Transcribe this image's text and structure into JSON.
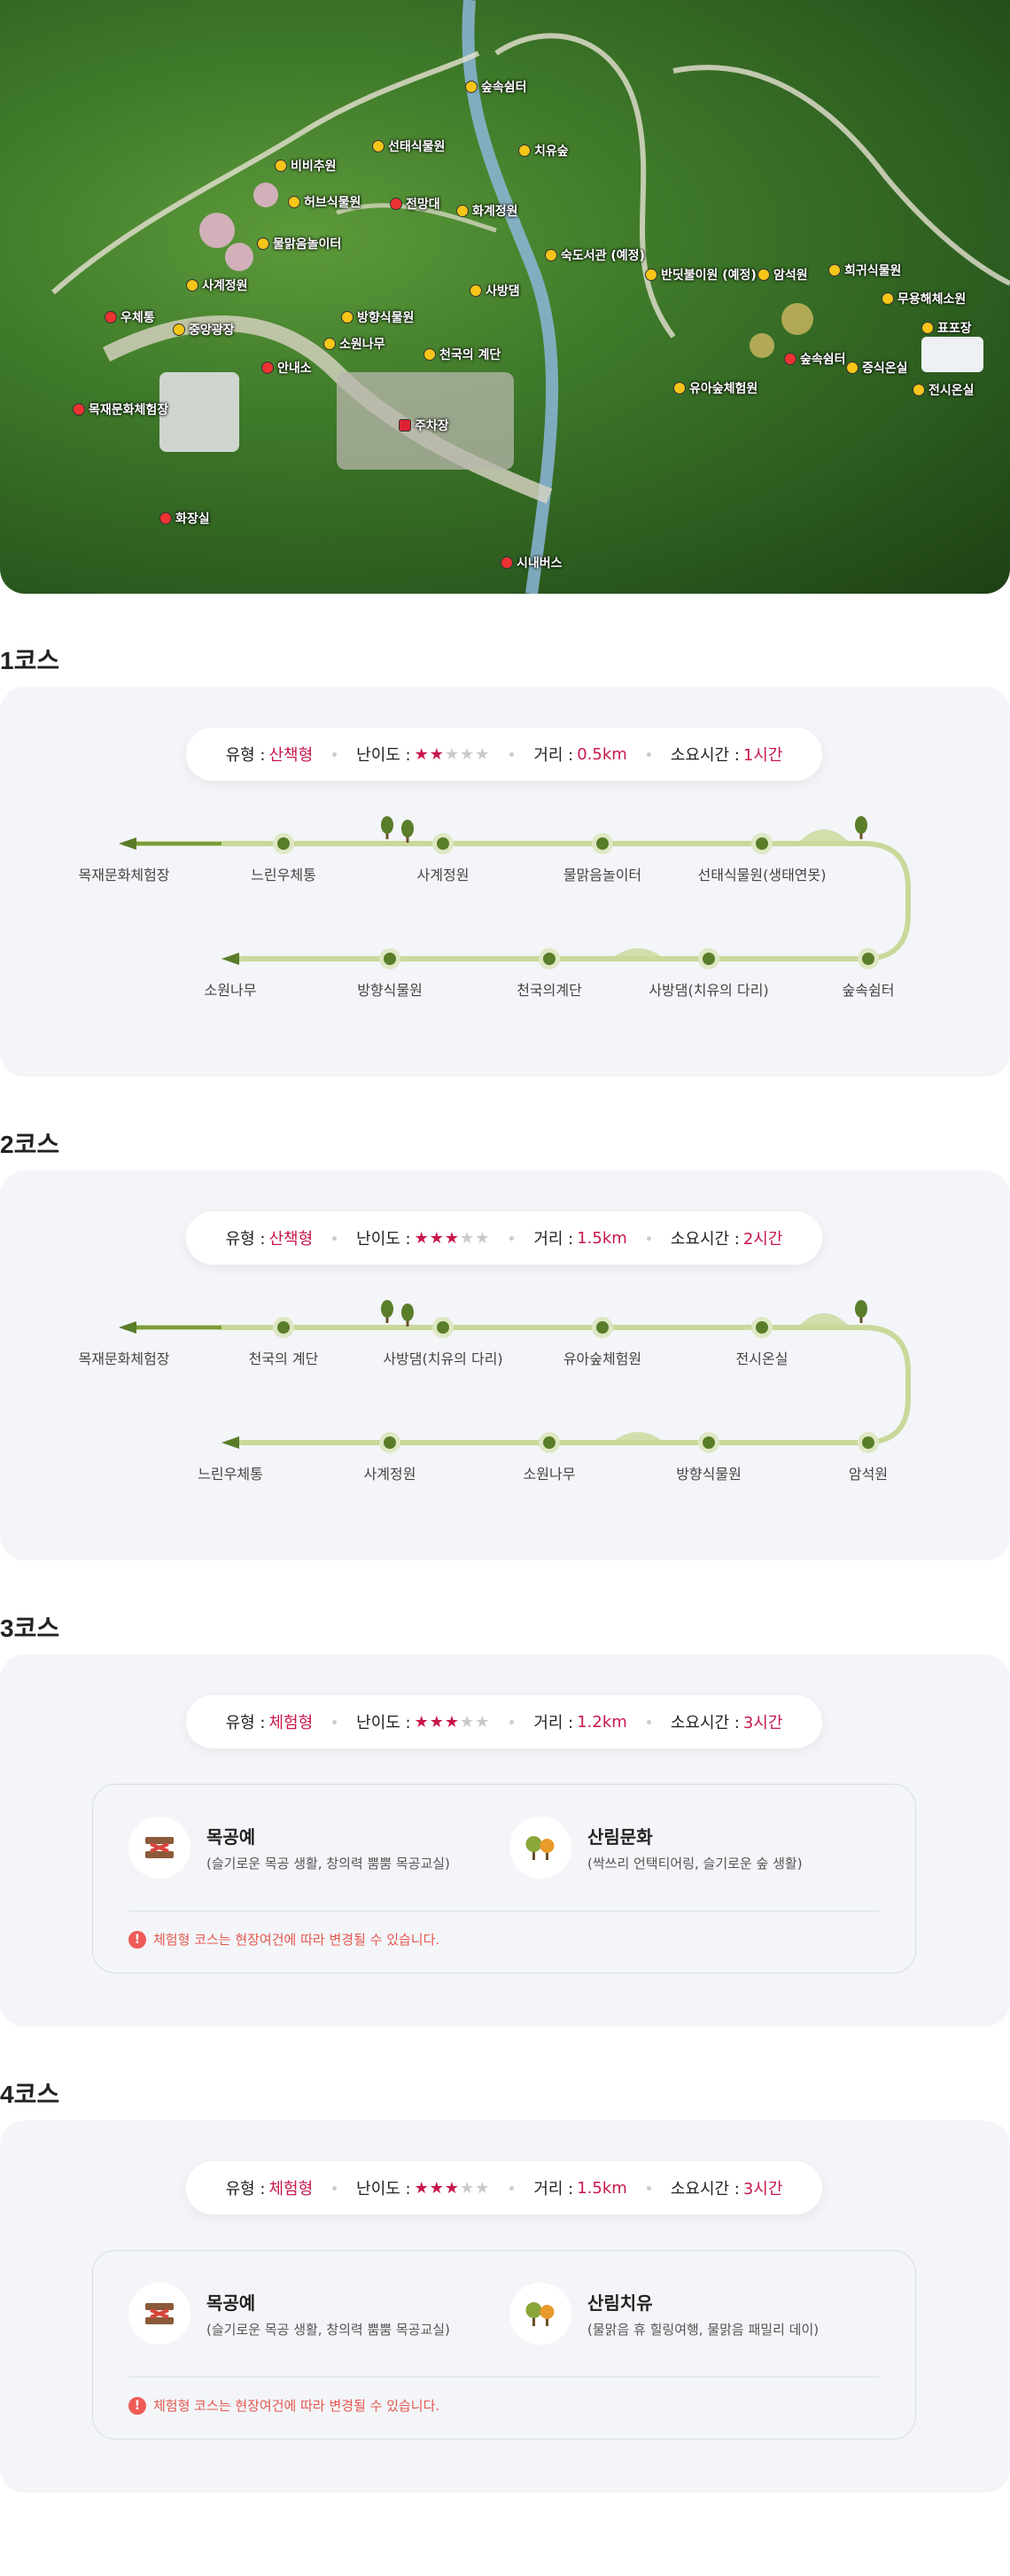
{
  "map": {
    "labels": {
      "rest_area_top": "숲속쉼터",
      "seontae": "선태식물원",
      "chiyu": "치유숲",
      "bibi": "비비추원",
      "herb": "허브식물원",
      "jeonmang": "전망대",
      "hwagye": "화계정원",
      "mulmalgeum": "물맑음놀이터",
      "sukdo": "숙도서관 (예정)",
      "bandi": "반딧불이원 (예정)",
      "amseok": "암석원",
      "huigwi": "희귀식물원",
      "muyonghae": "무용해체소원",
      "pyopo": "표포장",
      "sagye": "사계정원",
      "banghyang": "방향식물원",
      "sabang": "사방댐",
      "ujeche": "우체통",
      "jungang": "중앙광장",
      "sowon": "소원나무",
      "cheonguk": "천국의 계단",
      "info": "안내소",
      "mokjae": "목재문화체험장",
      "rest_area_right": "숲속쉼터",
      "jeungsik": "증식온실",
      "jeonsi": "전시온실",
      "yua": "유아숲체험원",
      "parking": "주차장",
      "toilet": "화장실",
      "bus": "시내버스"
    }
  },
  "courses": [
    {
      "title": "1코스",
      "info": {
        "type_label": "유형 :",
        "type": "산책형",
        "difficulty_label": "난이도 :",
        "difficulty": 2,
        "distance_label": "거리 :",
        "distance": "0.5km",
        "time_label": "소요시간 :",
        "time": "1시간"
      },
      "top_stops": [
        "목재문화체험장",
        "느린우체통",
        "사계정원",
        "물맑음놀이터",
        "선태식물원(생태연못)"
      ],
      "bottom_stops": [
        "소원나무",
        "방향식물원",
        "천국의계단",
        "사방댐(치유의 다리)",
        "숲속쉼터"
      ]
    },
    {
      "title": "2코스",
      "info": {
        "type_label": "유형 :",
        "type": "산책형",
        "difficulty_label": "난이도 :",
        "difficulty": 3,
        "distance_label": "거리 :",
        "distance": "1.5km",
        "time_label": "소요시간 :",
        "time": "2시간"
      },
      "top_stops": [
        "목재문화체험장",
        "천국의 계단",
        "사방댐(치유의 다리)",
        "유아숲체험원",
        "전시온실"
      ],
      "bottom_stops": [
        "느린우체통",
        "사계정원",
        "소원나무",
        "방향식물원",
        "암석원"
      ]
    },
    {
      "title": "3코스",
      "info": {
        "type_label": "유형 :",
        "type": "체험형",
        "difficulty_label": "난이도 :",
        "difficulty": 3,
        "distance_label": "거리 :",
        "distance": "1.2km",
        "time_label": "소요시간 :",
        "time": "3시간"
      },
      "exp": [
        {
          "title": "목공예",
          "desc": "(슬기로운 목공 생활, 창의력 뿜뿜 목공교실)",
          "icon": "woodcraft-icon"
        },
        {
          "title": "산림문화",
          "desc": "(싹쓰리 언택티어링, 슬기로운 숲 생활)",
          "icon": "forest-icon"
        }
      ],
      "note": "체험형 코스는 현장여건에 따라 변경될 수 있습니다."
    },
    {
      "title": "4코스",
      "info": {
        "type_label": "유형 :",
        "type": "체험형",
        "difficulty_label": "난이도 :",
        "difficulty": 3,
        "distance_label": "거리 :",
        "distance": "1.5km",
        "time_label": "소요시간 :",
        "time": "3시간"
      },
      "exp": [
        {
          "title": "목공예",
          "desc": "(슬기로운 목공 생활, 창의력 뿜뿜 목공교실)",
          "icon": "woodcraft-icon"
        },
        {
          "title": "산림치유",
          "desc": "(물맑음 휴 힐링여행, 물맑음 패밀리 데이)",
          "icon": "forest-icon"
        }
      ],
      "note": "체험형 코스는 현장여건에 따라 변경될 수 있습니다."
    }
  ],
  "colors": {
    "accent": "#c8174a",
    "route": "#c8d99a",
    "dot": "#5a7d2a",
    "warn": "#e5574f"
  }
}
